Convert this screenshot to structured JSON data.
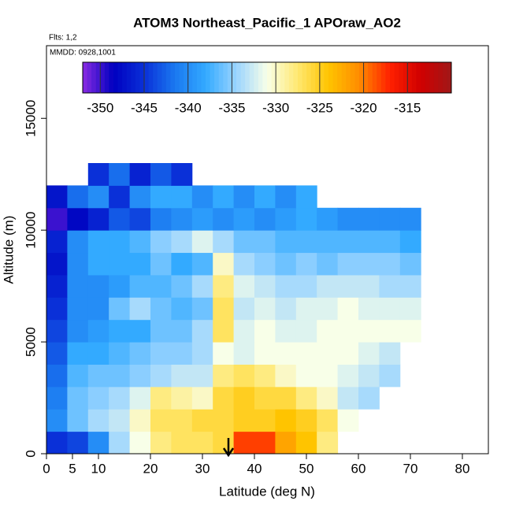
{
  "chart_data": {
    "type": "heatmap",
    "title": "ATOM3 Northeast_Pacific_1 APOraw_AO2",
    "annotations": [
      "Flts: 1,2",
      "MMDD: 0928,1001"
    ],
    "x_label": "Latitude (deg N)",
    "y_label": "Altitude (m)",
    "xlim": [
      0,
      85
    ],
    "xticks": [
      0,
      5,
      10,
      20,
      30,
      40,
      50,
      60,
      70,
      80
    ],
    "ylim": [
      0,
      18250
    ],
    "yticks": [
      0,
      5000,
      10000,
      15000
    ],
    "x_bins": [
      0,
      4,
      8,
      12,
      16,
      20,
      24,
      28,
      32,
      36,
      40,
      44,
      48,
      52,
      56,
      60,
      64,
      68,
      72
    ],
    "y_bins": [
      0,
      1000,
      2000,
      3000,
      4000,
      5000,
      6000,
      7000,
      8000,
      9000,
      10000,
      11000,
      12000,
      13000
    ],
    "values": [
      [
        -345,
        -344,
        -340,
        -334,
        -331,
        -328,
        -327,
        -327,
        -326,
        -318,
        -318,
        -322,
        -324,
        -328,
        null,
        null,
        null,
        null
      ],
      [
        -340,
        -336,
        -334,
        -333,
        -330,
        -327,
        -327,
        -326,
        -326,
        -325,
        -325,
        -324,
        -325,
        -327,
        -331,
        null,
        null,
        null
      ],
      [
        -341,
        -336,
        -335,
        -334,
        -332,
        -328,
        -329,
        -330,
        -326,
        -325,
        -326,
        -326,
        -328,
        -330,
        -333,
        -334,
        null,
        null
      ],
      [
        -342,
        -337,
        -336,
        -336,
        -335,
        -334,
        -333,
        -333,
        -328,
        -327,
        -328,
        -330,
        -331,
        -331,
        -332,
        -333,
        -334,
        null
      ],
      [
        -343,
        -338,
        -338,
        -337,
        -336,
        -335,
        -335,
        -334,
        -331,
        -332,
        -331,
        -331,
        -331,
        -331,
        -331,
        -332,
        -333,
        null
      ],
      [
        -344,
        -340,
        -339,
        -338,
        -338,
        -336,
        -336,
        -334,
        -327,
        -332,
        -331,
        -332,
        -332,
        -331,
        -331,
        -331,
        -331,
        -331
      ],
      [
        -345,
        -340,
        -340,
        -336,
        -334,
        -336,
        -337,
        -336,
        -327,
        -333,
        -332,
        -333,
        -332,
        -332,
        -331,
        -332,
        -332,
        -332
      ],
      [
        -346,
        -340,
        -340,
        -339,
        -337,
        -337,
        -336,
        -334,
        -328,
        -332,
        -333,
        -334,
        -334,
        -333,
        -333,
        -333,
        -334,
        -334
      ],
      [
        -347,
        -340,
        -338,
        -338,
        -338,
        -336,
        -338,
        -337,
        -330,
        -334,
        -335,
        -336,
        -335,
        -336,
        -335,
        -335,
        -335,
        -336
      ],
      [
        -346,
        -340,
        -338,
        -338,
        -337,
        -335,
        -334,
        -332,
        -334,
        -336,
        -336,
        -337,
        -337,
        -337,
        -337,
        -337,
        -337,
        -338
      ],
      [
        -350,
        -348,
        -346,
        -343,
        -344,
        -341,
        -340,
        -339,
        -340,
        -339,
        -340,
        -339,
        -338,
        -339,
        -340,
        -340,
        -340,
        -340
      ],
      [
        -347,
        -342,
        -340,
        -345,
        -340,
        -338,
        -338,
        -340,
        -338,
        -340,
        -338,
        -340,
        -338,
        null,
        null,
        null,
        null,
        null
      ],
      [
        null,
        null,
        -345,
        -342,
        -346,
        -343,
        -345,
        null,
        null,
        null,
        null,
        null,
        null,
        null,
        null,
        null,
        null,
        null
      ]
    ],
    "colorbar": {
      "clim": [
        -352,
        -310
      ],
      "ticks": [
        -350,
        -345,
        -340,
        -335,
        -330,
        -325,
        -320,
        -315
      ],
      "colors": [
        "#8a2be2",
        "#0000c0",
        "#0a30d8",
        "#1a78f0",
        "#33aaff",
        "#9ad4ff",
        "#f8ffe8",
        "#ffe870",
        "#ffc400",
        "#ff8c00",
        "#ff2000",
        "#d00000",
        "#a01818"
      ]
    }
  }
}
